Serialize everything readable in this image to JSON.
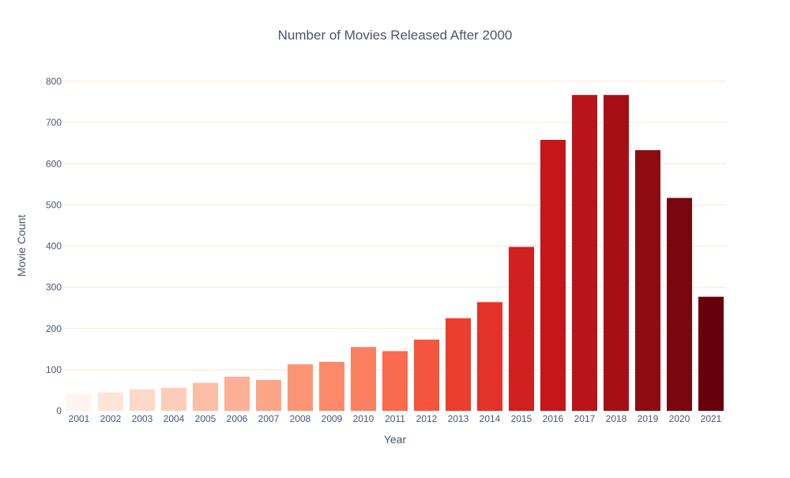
{
  "chart_data": {
    "type": "bar",
    "title": "Number of Movies Released After 2000",
    "xlabel": "Year",
    "ylabel": "Movie Count",
    "categories": [
      "2001",
      "2002",
      "2003",
      "2004",
      "2005",
      "2006",
      "2007",
      "2008",
      "2009",
      "2010",
      "2011",
      "2012",
      "2013",
      "2014",
      "2015",
      "2016",
      "2017",
      "2018",
      "2019",
      "2020",
      "2021"
    ],
    "values": [
      41,
      45,
      52,
      56,
      68,
      83,
      75,
      113,
      119,
      155,
      145,
      173,
      225,
      264,
      398,
      658,
      767,
      767,
      633,
      517,
      277
    ],
    "ylim": [
      0,
      800
    ],
    "yticks": [
      0,
      100,
      200,
      300,
      400,
      500,
      600,
      700,
      800
    ],
    "grid": true,
    "colorscale": "Reds",
    "colors": [
      "#fff5f0",
      "#fee5da",
      "#fdd8c8",
      "#fcceb9",
      "#fcbea5",
      "#fcb095",
      "#fca486",
      "#fc9574",
      "#fc8a6a",
      "#fb7f61",
      "#f96a4f",
      "#f5553d",
      "#eb3e2f",
      "#e43129",
      "#d21f20",
      "#c4161b",
      "#b91419",
      "#a60f15",
      "#8f0b12",
      "#7a0610",
      "#67000d"
    ]
  }
}
